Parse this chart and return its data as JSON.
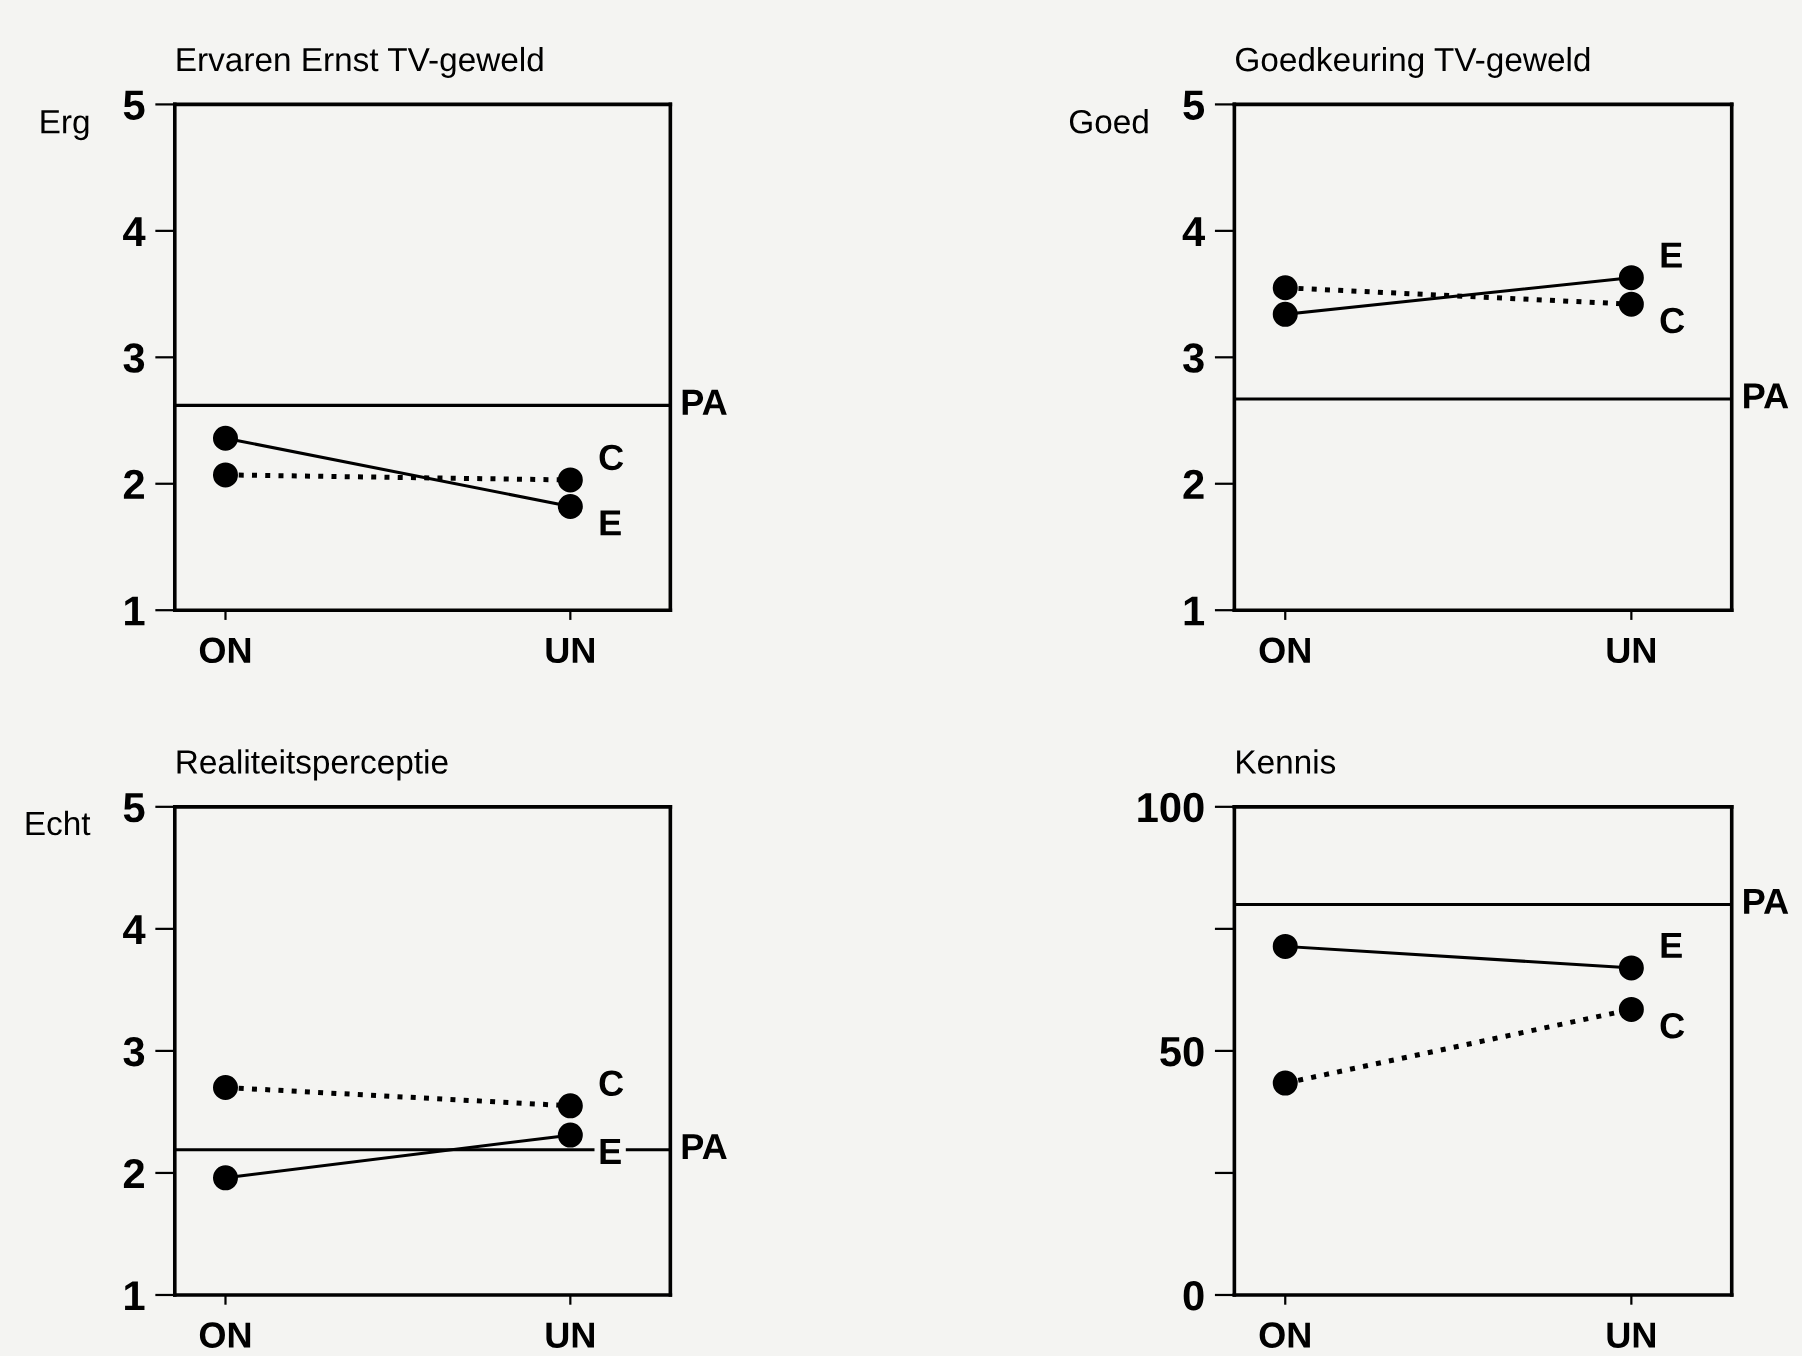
{
  "chart_data": [
    {
      "type": "line",
      "title": "Ervaren Ernst TV-geweld",
      "ylabel": "Erg",
      "categories": [
        "ON",
        "UN"
      ],
      "marker": "circle",
      "ylim": [
        1,
        5
      ],
      "yticks": [
        1,
        2,
        3,
        4,
        5
      ],
      "series": [
        {
          "name": "E",
          "color": "#000000",
          "line_style": "solid",
          "values": [
            2.36,
            1.82
          ]
        },
        {
          "name": "C",
          "color": "#000000",
          "line_style": "dotted",
          "values": [
            2.07,
            2.03
          ]
        }
      ],
      "ref_lines": [
        {
          "axis": "y",
          "value": 2.62,
          "label": "PA",
          "color": "#000000"
        }
      ]
    },
    {
      "type": "line",
      "title": "Goedkeuring TV-geweld",
      "ylabel": "Goed",
      "categories": [
        "ON",
        "UN"
      ],
      "marker": "circle",
      "ylim": [
        1,
        5
      ],
      "yticks": [
        1,
        2,
        3,
        4,
        5
      ],
      "series": [
        {
          "name": "E",
          "color": "#000000",
          "line_style": "solid",
          "values": [
            3.34,
            3.63
          ]
        },
        {
          "name": "C",
          "color": "#000000",
          "line_style": "dotted",
          "values": [
            3.55,
            3.42
          ]
        }
      ],
      "ref_lines": [
        {
          "axis": "y",
          "value": 2.67,
          "label": "PA",
          "color": "#000000"
        }
      ]
    },
    {
      "type": "line",
      "title": "Realiteitsperceptie",
      "ylabel": "Echt",
      "categories": [
        "ON",
        "UN"
      ],
      "marker": "circle",
      "ylim": [
        1,
        5
      ],
      "yticks": [
        1,
        2,
        3,
        4,
        5
      ],
      "series": [
        {
          "name": "E",
          "color": "#000000",
          "line_style": "solid",
          "values": [
            1.96,
            2.31
          ]
        },
        {
          "name": "C",
          "color": "#000000",
          "line_style": "dotted",
          "values": [
            2.7,
            2.55
          ]
        }
      ],
      "ref_lines": [
        {
          "axis": "y",
          "value": 2.19,
          "label": "PA",
          "color": "#000000"
        }
      ]
    },
    {
      "type": "line",
      "title": "Kennis",
      "categories": [
        "ON",
        "UN"
      ],
      "marker": "circle",
      "ylim": [
        0,
        100
      ],
      "yticks": [
        0,
        {
          "value": 25,
          "label": null
        },
        50,
        {
          "value": 75,
          "label": null
        },
        100
      ],
      "series": [
        {
          "name": "E",
          "color": "#000000",
          "line_style": "solid",
          "values": [
            71.4,
            67
          ]
        },
        {
          "name": "C",
          "color": "#000000",
          "line_style": "dotted",
          "values": [
            43.4,
            58.5
          ]
        }
      ],
      "ref_lines": [
        {
          "axis": "y",
          "value": 80,
          "label": "PA",
          "color": "#000000"
        }
      ]
    }
  ]
}
